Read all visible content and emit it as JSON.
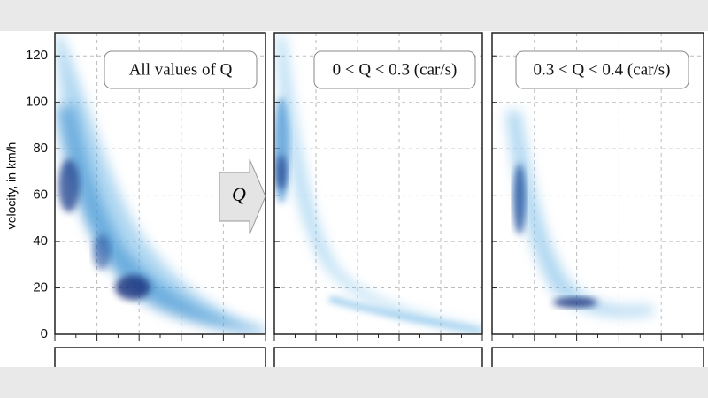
{
  "chart_data": {
    "type": "density",
    "y_label": "velocity,  in km/h",
    "ylim": [
      0,
      130
    ],
    "yticks": [
      0,
      20,
      40,
      60,
      80,
      100,
      120
    ],
    "grid": true,
    "panels": [
      {
        "label": "All values of Q"
      },
      {
        "label": "0 < Q < 0.3 (car/s)"
      },
      {
        "label": "0.3 < Q < 0.4 (car/s)"
      }
    ],
    "arrow_label": "Q"
  }
}
